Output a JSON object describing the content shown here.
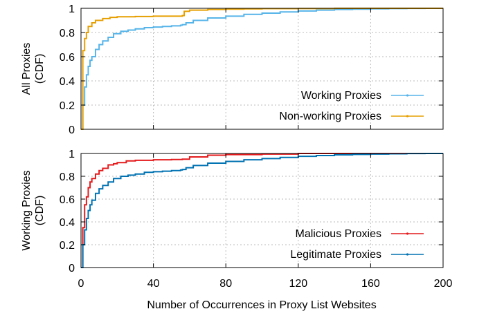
{
  "x_axis_label": "Number of Occurrences in Proxy List Websites",
  "chart_data": [
    {
      "type": "line",
      "title": "",
      "ylabel": [
        "All Proxies",
        "(CDF)"
      ],
      "xlabel": "",
      "xlim": [
        0,
        200
      ],
      "ylim": [
        0,
        1
      ],
      "xticks": [
        0,
        40,
        80,
        120,
        160,
        200
      ],
      "yticks": [
        0,
        0.2,
        0.4,
        0.6,
        0.8,
        1
      ],
      "ytick_labels": [
        "0",
        "0.2",
        "0.4",
        "0.6",
        "0.8",
        "1"
      ],
      "show_xtick_labels": false,
      "grid": true,
      "legend": "bottom-right",
      "series": [
        {
          "name": "Working Proxies",
          "color": "#56b4e9",
          "style": "step",
          "x": [
            0,
            1,
            2,
            3,
            4,
            5,
            6,
            8,
            10,
            12,
            15,
            18,
            22,
            26,
            30,
            35,
            40,
            45,
            50,
            55,
            56,
            58,
            62,
            70,
            80,
            90,
            100,
            110,
            120,
            130,
            140,
            150,
            160,
            170,
            180,
            190,
            200
          ],
          "y": [
            0,
            0.2,
            0.35,
            0.45,
            0.52,
            0.57,
            0.6,
            0.66,
            0.7,
            0.73,
            0.76,
            0.79,
            0.81,
            0.82,
            0.83,
            0.84,
            0.845,
            0.85,
            0.855,
            0.86,
            0.865,
            0.88,
            0.9,
            0.92,
            0.935,
            0.95,
            0.96,
            0.97,
            0.978,
            0.985,
            0.99,
            0.993,
            0.996,
            0.998,
            0.999,
            1,
            1
          ]
        },
        {
          "name": "Non-working Proxies",
          "color": "#e69f00",
          "style": "step",
          "x": [
            0,
            1,
            2,
            3,
            4,
            6,
            8,
            12,
            16,
            20,
            30,
            40,
            56,
            57,
            60,
            70,
            80,
            90,
            100,
            120,
            140,
            200
          ],
          "y": [
            0,
            0.65,
            0.75,
            0.8,
            0.85,
            0.88,
            0.9,
            0.915,
            0.925,
            0.93,
            0.932,
            0.935,
            0.94,
            0.975,
            0.985,
            0.99,
            0.993,
            0.995,
            0.997,
            0.998,
            1,
            1
          ]
        }
      ]
    },
    {
      "type": "line",
      "title": "",
      "ylabel": [
        "Working Proxies",
        "(CDF)"
      ],
      "xlabel": "Number of Occurrences in Proxy List Websites",
      "xlim": [
        0,
        200
      ],
      "ylim": [
        0,
        1
      ],
      "xticks": [
        0,
        40,
        80,
        120,
        160,
        200
      ],
      "yticks": [
        0,
        0.2,
        0.4,
        0.6,
        0.8,
        1
      ],
      "ytick_labels": [
        "0",
        "0.2",
        "0.4",
        "0.6",
        "0.8",
        "1"
      ],
      "show_xtick_labels": true,
      "grid": true,
      "legend": "bottom-right",
      "series": [
        {
          "name": "Malicious Proxies",
          "color": "#e41a1c",
          "style": "step",
          "x": [
            0,
            1,
            2,
            3,
            4,
            5,
            6,
            8,
            10,
            12,
            15,
            18,
            20,
            25,
            30,
            40,
            50,
            56,
            60,
            70,
            80,
            100,
            120,
            200
          ],
          "y": [
            0,
            0.35,
            0.55,
            0.62,
            0.7,
            0.75,
            0.78,
            0.82,
            0.85,
            0.87,
            0.9,
            0.91,
            0.92,
            0.935,
            0.94,
            0.945,
            0.947,
            0.95,
            0.97,
            0.985,
            0.99,
            0.995,
            1,
            1
          ]
        },
        {
          "name": "Legitimate Proxies",
          "color": "#0072b2",
          "style": "step",
          "x": [
            0,
            1,
            2,
            3,
            4,
            5,
            6,
            8,
            10,
            12,
            15,
            18,
            22,
            26,
            30,
            35,
            40,
            45,
            50,
            55,
            56,
            58,
            62,
            70,
            80,
            90,
            100,
            110,
            120,
            130,
            140,
            150,
            160,
            170,
            180,
            190,
            200
          ],
          "y": [
            0,
            0.2,
            0.33,
            0.43,
            0.5,
            0.55,
            0.59,
            0.65,
            0.69,
            0.72,
            0.75,
            0.78,
            0.8,
            0.81,
            0.82,
            0.835,
            0.84,
            0.845,
            0.85,
            0.855,
            0.86,
            0.875,
            0.895,
            0.915,
            0.93,
            0.945,
            0.955,
            0.965,
            0.975,
            0.982,
            0.988,
            0.992,
            0.995,
            0.997,
            0.999,
            1,
            1
          ]
        }
      ]
    }
  ]
}
